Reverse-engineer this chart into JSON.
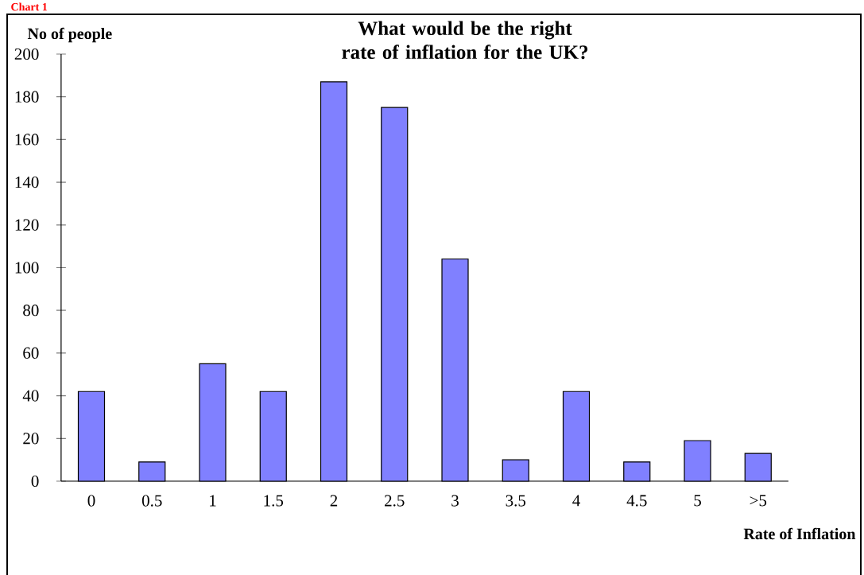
{
  "chart_data": {
    "type": "bar",
    "title": "What would be the right rate of inflation for the UK?",
    "xlabel": "Rate of Inflation",
    "ylabel": "No of people",
    "annotations": [
      "Chart 1"
    ],
    "categories": [
      "0",
      "0.5",
      "1",
      "1.5",
      "2",
      "2.5",
      "3",
      "3.5",
      "4",
      "4.5",
      "5",
      ">5"
    ],
    "values": [
      42,
      9,
      55,
      42,
      187,
      175,
      104,
      10,
      42,
      9,
      19,
      13
    ],
    "color": "#8080ff",
    "ylim": [
      0,
      200
    ],
    "yticks": [
      0,
      20,
      40,
      60,
      80,
      100,
      120,
      140,
      160,
      180,
      200
    ]
  }
}
